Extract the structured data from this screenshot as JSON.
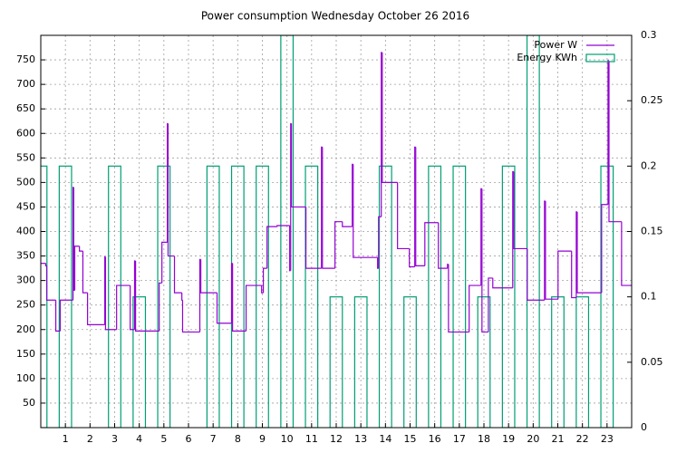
{
  "chart_data": {
    "type": "step",
    "title": "Power consumption Wednesday October 26 2016",
    "xlim": [
      0,
      24
    ],
    "xticks": [
      1,
      2,
      3,
      4,
      5,
      6,
      7,
      8,
      9,
      10,
      11,
      12,
      13,
      14,
      15,
      16,
      17,
      18,
      19,
      20,
      21,
      22,
      23
    ],
    "ylim": [
      0,
      800
    ],
    "yticks": [
      50,
      100,
      150,
      200,
      250,
      300,
      350,
      400,
      450,
      500,
      550,
      600,
      650,
      700,
      750
    ],
    "y2lim": [
      0,
      0.3
    ],
    "y2ticks": [
      0,
      0.05,
      0.1,
      0.15,
      0.2,
      0.25,
      0.3
    ],
    "grid": true,
    "legend": "top-right",
    "series": [
      {
        "name": "Power W",
        "color": "#9400d3",
        "style": "steps",
        "x": [
          0,
          0.2,
          0.24,
          0.61,
          0.79,
          1.31,
          1.34,
          1.38,
          1.57,
          1.71,
          1.9,
          2.6,
          2.63,
          3.08,
          3.63,
          3.81,
          3.85,
          4.81,
          4.92,
          5.14,
          5.17,
          5.43,
          5.73,
          5.76,
          6.46,
          6.5,
          7.16,
          7.75,
          7.79,
          8.34,
          8.97,
          9.04,
          9.19,
          9.6,
          10.11,
          10.15,
          10.18,
          10.77,
          11.4,
          11.44,
          11.95,
          12.25,
          12.65,
          12.69,
          13.68,
          13.72,
          13.83,
          13.87,
          14.49,
          14.97,
          15.19,
          15.23,
          15.6,
          16.15,
          16.52,
          16.56,
          17.4,
          17.88,
          17.92,
          18.18,
          18.36,
          19.17,
          19.21,
          19.76,
          20.46,
          20.5,
          21.01,
          21.56,
          21.75,
          21.79,
          22.78,
          23.04,
          23.08,
          23.59,
          24
        ],
        "values": [
          335,
          330,
          260,
          197,
          260,
          490,
          280,
          370,
          360,
          275,
          210,
          348,
          200,
          290,
          200,
          340,
          197,
          295,
          378,
          620,
          350,
          275,
          260,
          195,
          343,
          275,
          213,
          335,
          197,
          290,
          275,
          325,
          410,
          412,
          320,
          620,
          450,
          325,
          572,
          325,
          420,
          410,
          537,
          347,
          325,
          430,
          765,
          500,
          365,
          328,
          572,
          330,
          418,
          325,
          333,
          195,
          290,
          487,
          195,
          305,
          285,
          522,
          365,
          260,
          462,
          262,
          360,
          265,
          440,
          275,
          455,
          748,
          420,
          290,
          290
        ]
      },
      {
        "name": "Energy KWh",
        "color": "#009e73",
        "style": "boxes",
        "axis": "y2",
        "x": [
          0,
          1,
          2,
          3,
          4,
          5,
          6,
          7,
          8,
          9,
          10,
          11,
          12,
          13,
          14,
          15,
          16,
          17,
          18,
          19,
          20,
          21,
          22,
          23
        ],
        "values": [
          0.2,
          0.2,
          0,
          0.2,
          0.1,
          0.2,
          0,
          0.2,
          0.2,
          0.2,
          0.3,
          0.2,
          0.1,
          0.1,
          0.2,
          0.1,
          0.2,
          0.2,
          0.1,
          0.2,
          0.3,
          0.1,
          0.1,
          0.2
        ]
      }
    ]
  }
}
